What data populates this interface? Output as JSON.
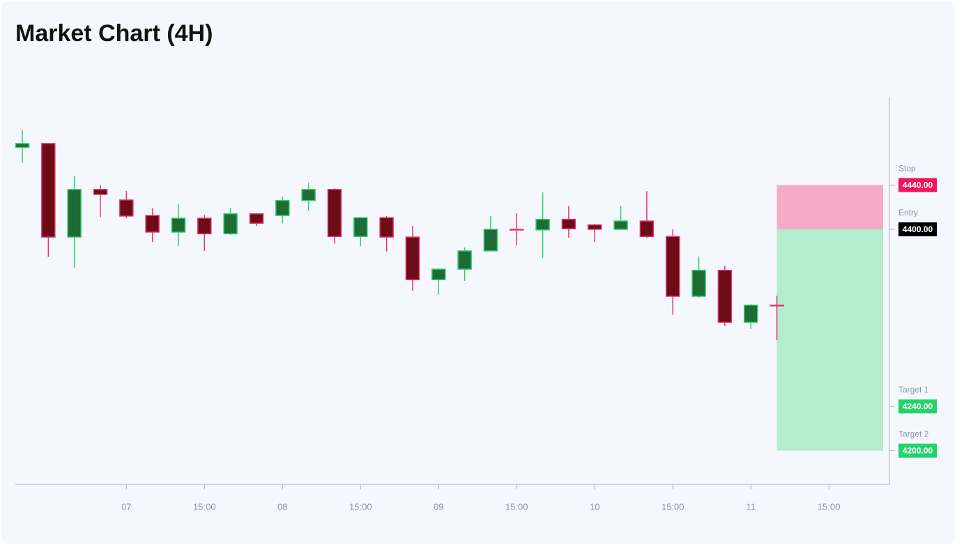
{
  "chart_data": {
    "type": "candlestick",
    "title": "Market Chart (4H)",
    "categories": [
      null,
      null,
      null,
      null,
      "07",
      null,
      null,
      "15:00",
      null,
      null,
      "08",
      null,
      null,
      "15:00",
      null,
      null,
      "09",
      null,
      null,
      "15:00",
      null,
      null,
      "10",
      null,
      null,
      "15:00",
      null,
      null,
      "11",
      null,
      null,
      "15:00"
    ],
    "open": [
      4474,
      4477.5,
      4393,
      4436,
      4426.5,
      4412.5,
      4397.5,
      4410,
      4396,
      4414,
      4412.5,
      4426,
      4436,
      4393.5,
      4410.5,
      4393,
      4354.5,
      4364,
      4380.5,
      4400,
      4399.5,
      4409,
      4404,
      4400,
      4407.5,
      4393.5,
      4339.5,
      4363,
      4316,
      4331.5,
      null,
      null
    ],
    "high": [
      4490,
      4478,
      4448.5,
      4440,
      4434.5,
      4419,
      4423,
      4413,
      4419,
      4414,
      4429.5,
      4442,
      4437,
      4410.5,
      4412,
      4403,
      4364,
      4383.5,
      4412,
      4414.5,
      4433.5,
      4421,
      4405,
      4421,
      4434.5,
      4400,
      4375.5,
      4367,
      4332.5,
      4340,
      null,
      null
    ],
    "low": [
      4460,
      4375,
      4365,
      4411,
      4410,
      4388.5,
      4385,
      4380.5,
      4395,
      4403,
      4405.5,
      4417,
      4387,
      4385,
      4380,
      4344.5,
      4341,
      4353.5,
      4380,
      4385.5,
      4374,
      4392.5,
      4388.5,
      4400,
      4392,
      4323,
      4338,
      4312.5,
      4310,
      4300,
      null,
      null
    ],
    "close": [
      4477.5,
      4393,
      4436,
      4431.5,
      4412,
      4397.5,
      4410,
      4396,
      4414,
      4405.5,
      4426,
      4436,
      4393.5,
      4410.5,
      4393,
      4354.5,
      4364,
      4380.5,
      4400,
      4399.5,
      4409,
      4400.5,
      4400,
      4407.5,
      4393.5,
      4339.5,
      4363,
      4316,
      4331.5,
      4331,
      null,
      null
    ],
    "up_color": "#1f6b35",
    "up_edge": "#2fcf6a",
    "down_color": "#6b0c16",
    "down_edge": "#e8336b",
    "ylim": [
      4169.5,
      4519
    ],
    "levels": {
      "names": [
        "Stop",
        "Entry",
        "Target 1",
        "Target 2"
      ],
      "values": [
        4440,
        4400,
        4240,
        4200
      ],
      "value_labels": [
        "4440.00",
        "4400.00",
        "4240.00",
        "4200.00"
      ],
      "colors": [
        "#f0145a",
        "#000000",
        "#22d36a",
        "#22d36a"
      ]
    },
    "risk_color": "#f5aac8",
    "reward_color": "#b3edcb"
  }
}
